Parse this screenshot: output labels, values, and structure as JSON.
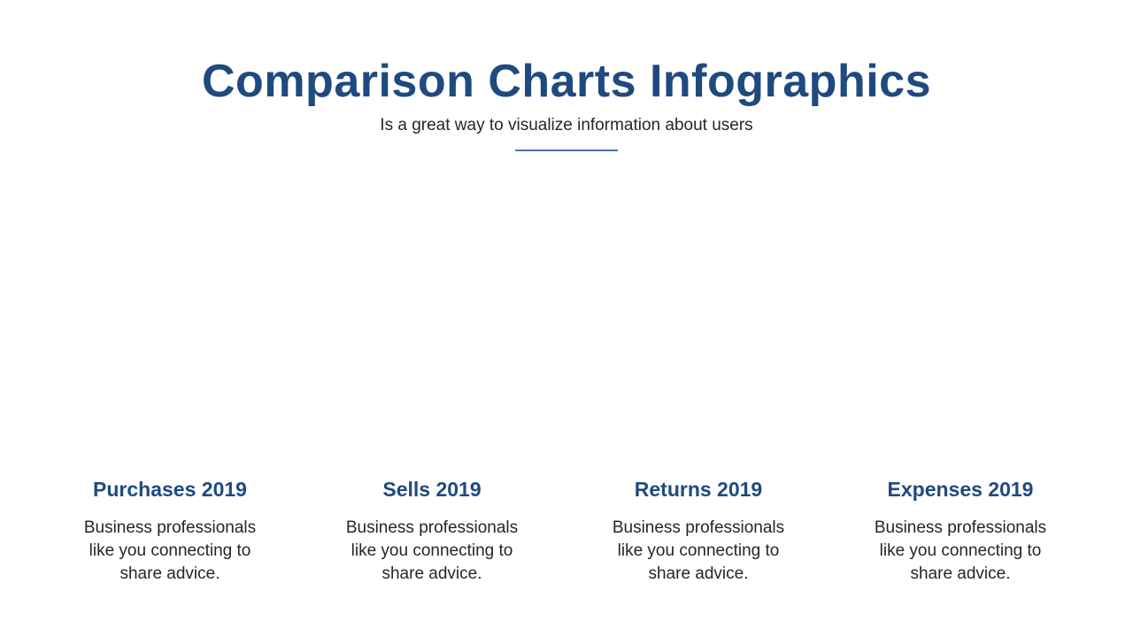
{
  "header": {
    "title": "Comparison Charts Infographics",
    "subtitle": "Is a great way to visualize information about users"
  },
  "columns": [
    {
      "title": "Purchases 2019",
      "text_lines": [
        "Business professionals",
        "like you connecting to",
        "share advice."
      ]
    },
    {
      "title": "Sells 2019",
      "text_lines": [
        "Business professionals",
        "like you connecting to",
        "share advice."
      ]
    },
    {
      "title": "Returns 2019",
      "text_lines": [
        "Business professionals",
        "like you connecting to",
        "share advice."
      ]
    },
    {
      "title": "Expenses 2019",
      "text_lines": [
        "Business professionals",
        "like you connecting to",
        "share advice."
      ]
    }
  ],
  "colors": {
    "accent": "#1f4a80",
    "divider": "#4a73b0",
    "body_text": "#262626"
  }
}
